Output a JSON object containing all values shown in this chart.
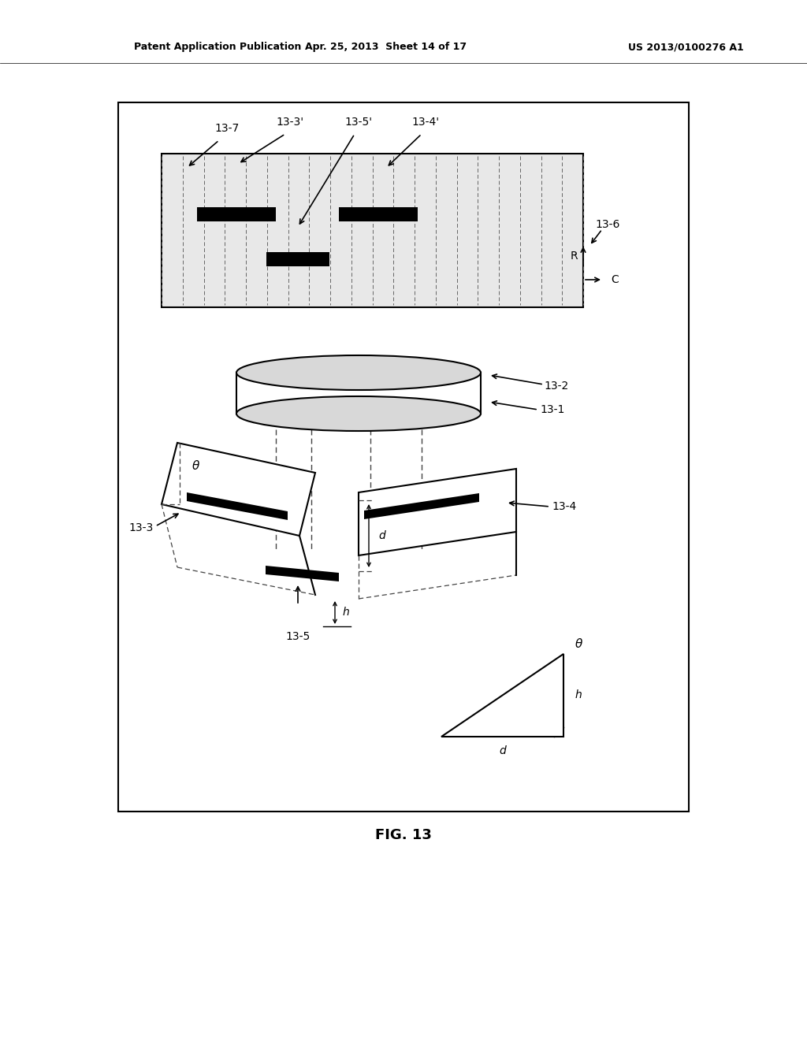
{
  "bg_color": "#ffffff",
  "fig_label": "FIG. 13",
  "header_left": "Patent Application Publication",
  "header_mid": "Apr. 25, 2013  Sheet 14 of 17",
  "header_right": "US 2013/0100276 A1"
}
